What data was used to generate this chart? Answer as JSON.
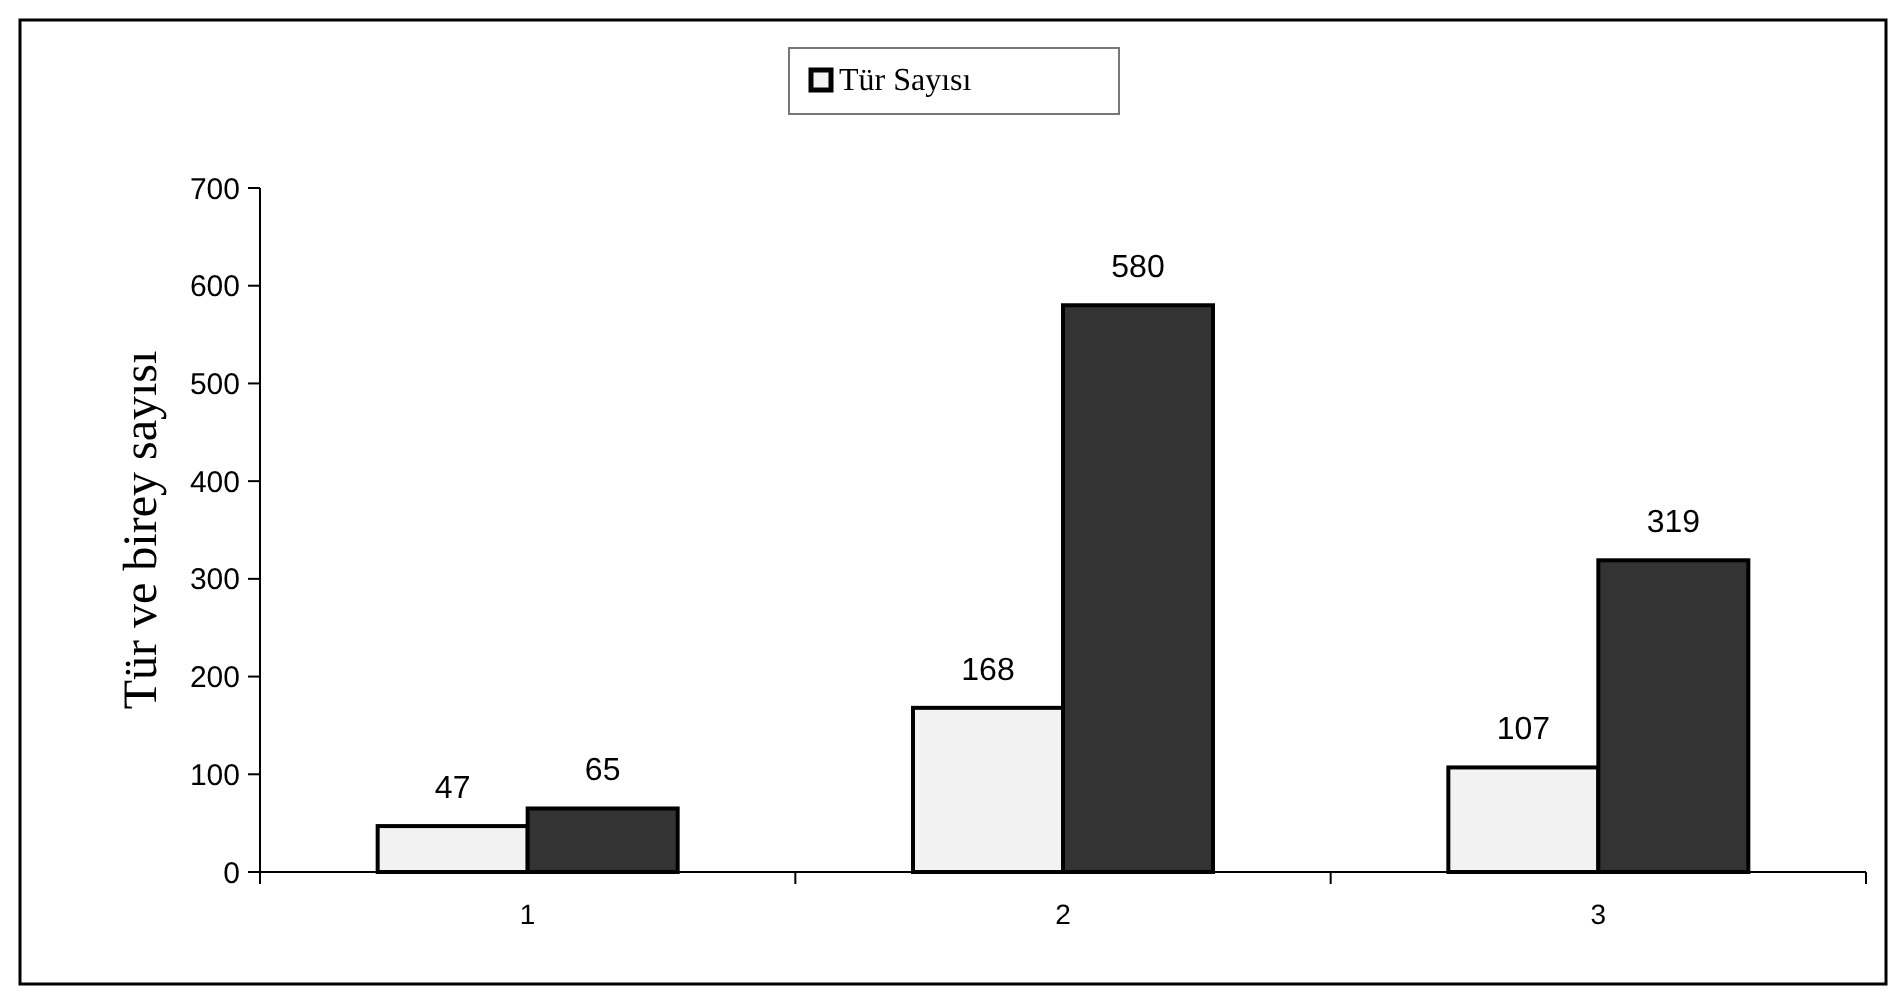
{
  "chart_data": {
    "type": "bar",
    "ylabel": "Tür ve birey sayısı",
    "categories": [
      "1",
      "2",
      "3"
    ],
    "series": [
      {
        "name": "Tür Sayısı",
        "color": "#f2f2f2",
        "values": [
          47,
          168,
          107
        ]
      },
      {
        "color": "#333333",
        "values": [
          65,
          580,
          319
        ]
      }
    ],
    "ylim": [
      0,
      700
    ],
    "yticks": [
      0,
      100,
      200,
      300,
      400,
      500,
      600,
      700
    ],
    "grid": false,
    "legend": "top",
    "data_labels": true
  }
}
